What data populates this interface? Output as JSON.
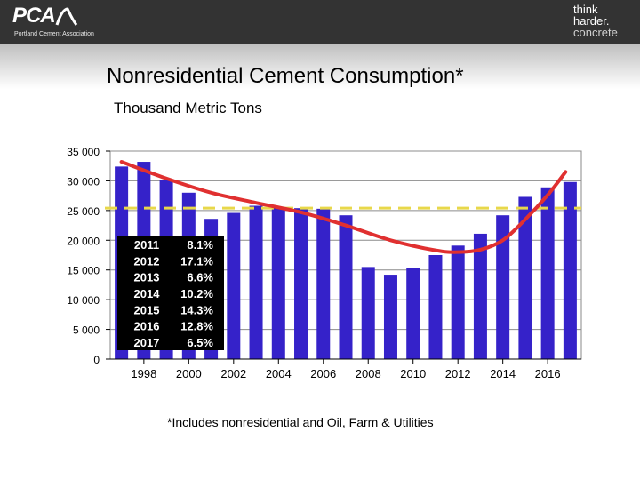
{
  "header": {
    "logo_text": "PCA",
    "logo_subtext": "Portland Cement Association",
    "tagline": [
      "think",
      "harder.",
      "concrete"
    ]
  },
  "title": "Nonresidential Cement Consumption*",
  "subtitle": "Thousand Metric Tons",
  "footnote": "*Includes nonresidential and Oil, Farm & Utilities",
  "colors": {
    "bar": "#3522c9",
    "trend_line": "#e03030",
    "reference_line": "#e8d84a",
    "header_bg": "#333333"
  },
  "chart_data": {
    "type": "bar",
    "categories": [
      "1997",
      "1998",
      "1999",
      "2000",
      "2001",
      "2002",
      "2003",
      "2004",
      "2005",
      "2006",
      "2007",
      "2008",
      "2009",
      "2010",
      "2011",
      "2012",
      "2013",
      "2014",
      "2015",
      "2016",
      "2017"
    ],
    "values": [
      32400,
      33200,
      30200,
      28000,
      23600,
      24600,
      25800,
      25600,
      25400,
      25300,
      24200,
      15500,
      14200,
      15300,
      17500,
      19100,
      21100,
      24200,
      27300,
      28900,
      29800
    ],
    "x_tick_labels": [
      "1998",
      "2000",
      "2002",
      "2004",
      "2006",
      "2008",
      "2010",
      "2012",
      "2014",
      "2016"
    ],
    "y_tick_labels": [
      "0",
      "5 000",
      "10 000",
      "15 000",
      "20 000",
      "25 000",
      "30 000",
      "35 000"
    ],
    "ylim": [
      0,
      35000
    ],
    "grid": true,
    "reference_line_value": 25400,
    "trend_points": [
      [
        1997,
        33200
      ],
      [
        1999,
        30400
      ],
      [
        2001,
        28000
      ],
      [
        2003,
        26300
      ],
      [
        2005,
        24700
      ],
      [
        2007,
        22500
      ],
      [
        2009,
        20000
      ],
      [
        2011,
        18300
      ],
      [
        2012,
        18000
      ],
      [
        2013,
        18400
      ],
      [
        2014,
        20000
      ],
      [
        2015,
        23500
      ],
      [
        2016,
        27600
      ],
      [
        2016.8,
        31500
      ]
    ],
    "growth_table": [
      {
        "year": "2011",
        "growth": "8.1%"
      },
      {
        "year": "2012",
        "growth": "17.1%"
      },
      {
        "year": "2013",
        "growth": "6.6%"
      },
      {
        "year": "2014",
        "growth": "10.2%"
      },
      {
        "year": "2015",
        "growth": "14.3%"
      },
      {
        "year": "2016",
        "growth": "12.8%"
      },
      {
        "year": "2017",
        "growth": "6.5%"
      }
    ]
  }
}
